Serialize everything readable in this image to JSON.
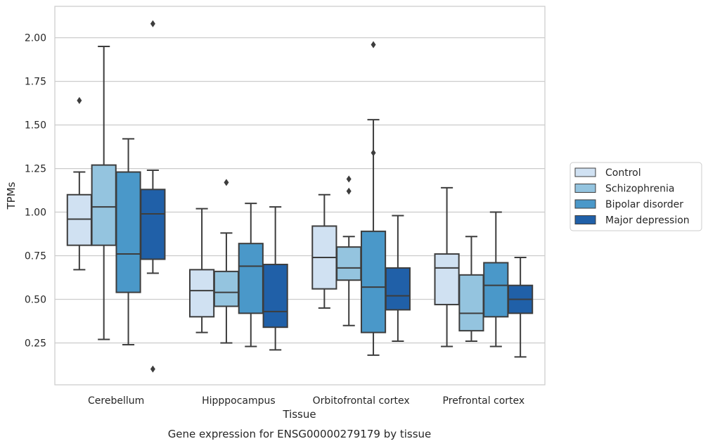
{
  "chart_data": {
    "type": "box",
    "title": "",
    "caption": "Gene expression for ENSG00000279179 by tissue",
    "xlabel": "Tissue",
    "ylabel": "TPMs",
    "ylim": [
      0.01,
      2.18
    ],
    "yticks": [
      "0.25",
      "0.50",
      "0.75",
      "1.00",
      "1.25",
      "1.50",
      "1.75",
      "2.00"
    ],
    "grid": true,
    "legend_position": "right",
    "categories": [
      "Cerebellum",
      "Hipppocampus",
      "Orbitofrontal cortex",
      "Prefrontal cortex"
    ],
    "series": [
      {
        "name": "Control",
        "color": "#d0e1f2",
        "boxes": [
          {
            "whisker_low": 0.67,
            "q1": 0.81,
            "median": 0.96,
            "q3": 1.1,
            "whisker_high": 1.23,
            "outliers": [
              1.64
            ]
          },
          {
            "whisker_low": 0.31,
            "q1": 0.4,
            "median": 0.55,
            "q3": 0.67,
            "whisker_high": 1.02,
            "outliers": []
          },
          {
            "whisker_low": 0.45,
            "q1": 0.56,
            "median": 0.74,
            "q3": 0.92,
            "whisker_high": 1.1,
            "outliers": []
          },
          {
            "whisker_low": 0.23,
            "q1": 0.47,
            "median": 0.68,
            "q3": 0.76,
            "whisker_high": 1.14,
            "outliers": []
          }
        ]
      },
      {
        "name": "Schizophrenia",
        "color": "#94c4df",
        "boxes": [
          {
            "whisker_low": 0.27,
            "q1": 0.81,
            "median": 1.03,
            "q3": 1.27,
            "whisker_high": 1.95,
            "outliers": []
          },
          {
            "whisker_low": 0.25,
            "q1": 0.46,
            "median": 0.54,
            "q3": 0.66,
            "whisker_high": 0.88,
            "outliers": [
              1.17
            ]
          },
          {
            "whisker_low": 0.35,
            "q1": 0.61,
            "median": 0.68,
            "q3": 0.8,
            "whisker_high": 0.86,
            "outliers": [
              1.12,
              1.19
            ]
          },
          {
            "whisker_low": 0.26,
            "q1": 0.32,
            "median": 0.42,
            "q3": 0.64,
            "whisker_high": 0.86,
            "outliers": []
          }
        ]
      },
      {
        "name": "Bipolar disorder",
        "color": "#4a98c9",
        "boxes": [
          {
            "whisker_low": 0.24,
            "q1": 0.54,
            "median": 0.76,
            "q3": 1.23,
            "whisker_high": 1.42,
            "outliers": []
          },
          {
            "whisker_low": 0.23,
            "q1": 0.42,
            "median": 0.69,
            "q3": 0.82,
            "whisker_high": 1.05,
            "outliers": []
          },
          {
            "whisker_low": 0.18,
            "q1": 0.31,
            "median": 0.57,
            "q3": 0.89,
            "whisker_high": 1.53,
            "outliers": [
              1.34,
              1.96
            ]
          },
          {
            "whisker_low": 0.23,
            "q1": 0.4,
            "median": 0.58,
            "q3": 0.71,
            "whisker_high": 1.0,
            "outliers": []
          }
        ]
      },
      {
        "name": "Major depression",
        "color": "#2060a8",
        "boxes": [
          {
            "whisker_low": 0.65,
            "q1": 0.73,
            "median": 0.99,
            "q3": 1.13,
            "whisker_high": 1.24,
            "outliers": [
              0.1,
              2.08
            ]
          },
          {
            "whisker_low": 0.21,
            "q1": 0.34,
            "median": 0.43,
            "q3": 0.7,
            "whisker_high": 1.03,
            "outliers": []
          },
          {
            "whisker_low": 0.26,
            "q1": 0.44,
            "median": 0.52,
            "q3": 0.68,
            "whisker_high": 0.98,
            "outliers": []
          },
          {
            "whisker_low": 0.17,
            "q1": 0.42,
            "median": 0.5,
            "q3": 0.58,
            "whisker_high": 0.74,
            "outliers": []
          }
        ]
      }
    ]
  }
}
